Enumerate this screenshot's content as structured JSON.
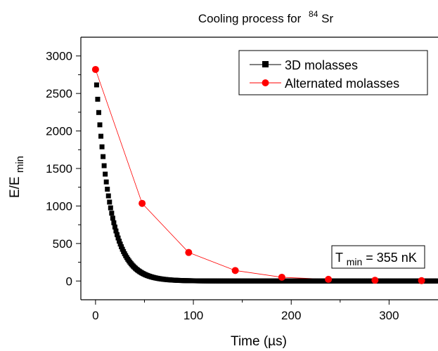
{
  "chart_data": {
    "type": "scatter",
    "title": "Cooling process for",
    "title_sup": "84",
    "title_element": "Sr",
    "xlabel": "Time (µs)",
    "ylabel_main": "E/E",
    "ylabel_sub": "min",
    "xlim": [
      -15,
      350
    ],
    "ylim": [
      -250,
      3250
    ],
    "xticks": [
      0,
      100,
      200,
      300
    ],
    "yticks": [
      0,
      500,
      1000,
      1500,
      2000,
      2500,
      3000
    ],
    "xtick_labels": [
      "0",
      "100",
      "200",
      "300"
    ],
    "ytick_labels": [
      "0",
      "500",
      "1000",
      "1500",
      "2000",
      "2500",
      "3000"
    ],
    "legend_position": "top-right",
    "grid": false,
    "series": [
      {
        "name": "3D molasses",
        "color": "#000000",
        "marker": "square",
        "model": {
          "E0": 2820,
          "tau_us": 14.5,
          "x_start": 0,
          "x_end": 350,
          "step_us": 1.1
        }
      },
      {
        "name": "Alternated molasses",
        "color": "#ff0000",
        "marker": "circle",
        "x": [
          0,
          47.6,
          95.2,
          142.8,
          190.4,
          238,
          285.6,
          333.2
        ],
        "y": [
          2820,
          1035,
          380,
          140,
          50,
          22,
          10,
          5
        ]
      }
    ],
    "annotation": {
      "prefix": "T",
      "sub": "min",
      "suffix": "= 355 nK"
    }
  }
}
